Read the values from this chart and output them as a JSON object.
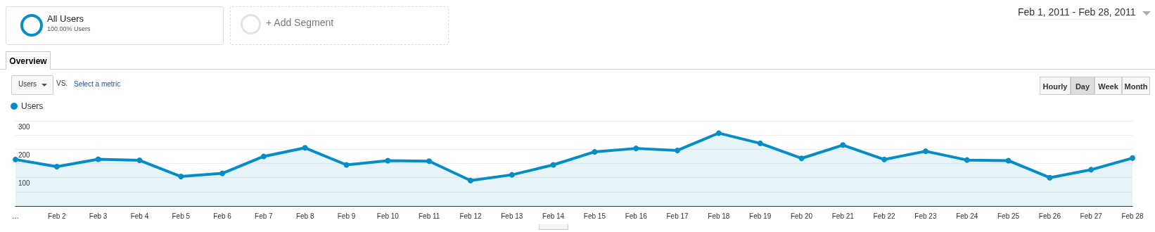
{
  "chart_data": {
    "type": "area",
    "categories": [
      "…",
      "Feb 2",
      "Feb 3",
      "Feb 4",
      "Feb 5",
      "Feb 6",
      "Feb 7",
      "Feb 8",
      "Feb 9",
      "Feb 10",
      "Feb 11",
      "Feb 12",
      "Feb 13",
      "Feb 14",
      "Feb 15",
      "Feb 16",
      "Feb 17",
      "Feb 18",
      "Feb 19",
      "Feb 20",
      "Feb 21",
      "Feb 22",
      "Feb 23",
      "Feb 24",
      "Feb 25",
      "Feb 26",
      "Feb 27",
      "Feb 28"
    ],
    "series": [
      {
        "name": "Users",
        "color": "#058dc7",
        "values": [
          164,
          139,
          165,
          161,
          104,
          115,
          175,
          205,
          145,
          160,
          158,
          90,
          110,
          145,
          191,
          203,
          196,
          257,
          221,
          168,
          215,
          164,
          193,
          162,
          160,
          100,
          128,
          169
        ]
      }
    ],
    "ylim": [
      0,
      300
    ],
    "yticks": [
      {
        "value": 50,
        "label": null
      },
      100,
      {
        "value": 150,
        "label": null
      },
      200,
      {
        "value": 250,
        "label": null
      },
      300
    ],
    "grid": "y",
    "legend": "top left",
    "marker": "circle",
    "line_style": "solid",
    "annotations": [
      "All Users",
      "100.00% Users",
      "+ Add Segment",
      "Feb 1, 2011 - Feb 28, 2011",
      "Overview",
      "Users",
      "VS.",
      "Select a metric",
      "Hourly",
      "Day",
      "Week",
      "Month"
    ]
  }
}
